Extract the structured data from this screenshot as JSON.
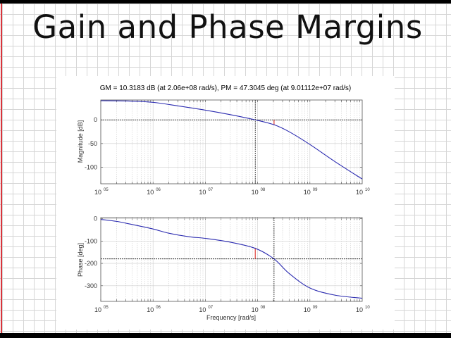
{
  "slide": {
    "title": "Gain and Phase Margins"
  },
  "colors": {
    "curve": "#2b2bb0",
    "margin_marker": "#e0433d",
    "reference_line": "#000000",
    "grid": "#cccccc",
    "paper_grid": "#d6d6d6",
    "paper_margin": "#d9343b"
  },
  "chart_data": [
    {
      "type": "line",
      "title": "GM = 10.3183 dB (at 2.06e+08 rad/s),   PM = 47.3045 deg (at 9.01112e+07 rad/s)",
      "xlabel": "",
      "ylabel": "Magnitude [dB]",
      "xscale": "log",
      "xlim": [
        100000,
        10000000000
      ],
      "ylim": [
        -135,
        42
      ],
      "x_tick_labels": [
        "10^05",
        "10^06",
        "10^07",
        "10^08",
        "10^09",
        "10^10"
      ],
      "y_tick_labels": [
        "0",
        "-50",
        "-100"
      ],
      "grid": true,
      "reference_lines": [
        {
          "axis": "y",
          "value": 0,
          "style": "dashed"
        }
      ],
      "markers": [
        {
          "x": 90111200,
          "label": "PM crossover (0 dB)"
        },
        {
          "x": 206000000,
          "from": 0,
          "to": -10.3,
          "label": "Gain margin"
        }
      ],
      "series": [
        {
          "name": "Magnitude",
          "x": [
            100000,
            300000,
            1000000,
            3000000,
            10000000,
            30000000,
            90111200,
            206000000,
            400000000,
            1000000000,
            3000000000,
            10000000000
          ],
          "y": [
            40.5,
            40,
            37,
            29.5,
            20.5,
            11,
            0,
            -10.3,
            -25,
            -52,
            -88,
            -125
          ]
        }
      ]
    },
    {
      "type": "line",
      "title": "",
      "xlabel": "Frequency [rad/s]",
      "ylabel": "Phase [deg]",
      "xscale": "log",
      "xlim": [
        100000,
        10000000000
      ],
      "ylim": [
        -370,
        5
      ],
      "x_tick_labels": [
        "10^05",
        "10^06",
        "10^07",
        "10^08",
        "10^09",
        "10^10"
      ],
      "y_tick_labels": [
        "0",
        "-100",
        "-200",
        "-300"
      ],
      "grid": true,
      "reference_lines": [
        {
          "axis": "y",
          "value": -180,
          "style": "dashed"
        }
      ],
      "markers": [
        {
          "x": 90111200,
          "from": -180,
          "to": -132.7,
          "label": "Phase margin"
        },
        {
          "x": 206000000,
          "label": "GM crossover (-180 deg)"
        }
      ],
      "series": [
        {
          "name": "Phase",
          "x": [
            100000,
            200000,
            400000,
            1000000,
            2000000,
            5000000,
            10000000,
            30000000,
            90111200,
            206000000,
            400000000,
            1000000000,
            3000000000,
            10000000000
          ],
          "y": [
            -3,
            -12,
            -26,
            -46,
            -65,
            -81,
            -88,
            -105,
            -132.7,
            -180,
            -245,
            -310,
            -342,
            -356
          ]
        }
      ]
    }
  ],
  "plots": {
    "title": "GM = 10.3183 dB (at 2.06e+08 rad/s),   PM = 47.3045 deg (at 9.01112e+07 rad/s)",
    "magnitude": {
      "ylabel": "Magnitude [dB]",
      "yticks": [
        "0",
        "-50",
        "-100"
      ]
    },
    "phase": {
      "ylabel": "Phase [deg]",
      "yticks": [
        "0",
        "-100",
        "-200",
        "-300"
      ],
      "xlabel": "Frequency [rad/s]"
    },
    "xticks": {
      "base": "10",
      "exponents": [
        "05",
        "06",
        "07",
        "08",
        "09",
        "10"
      ]
    }
  }
}
